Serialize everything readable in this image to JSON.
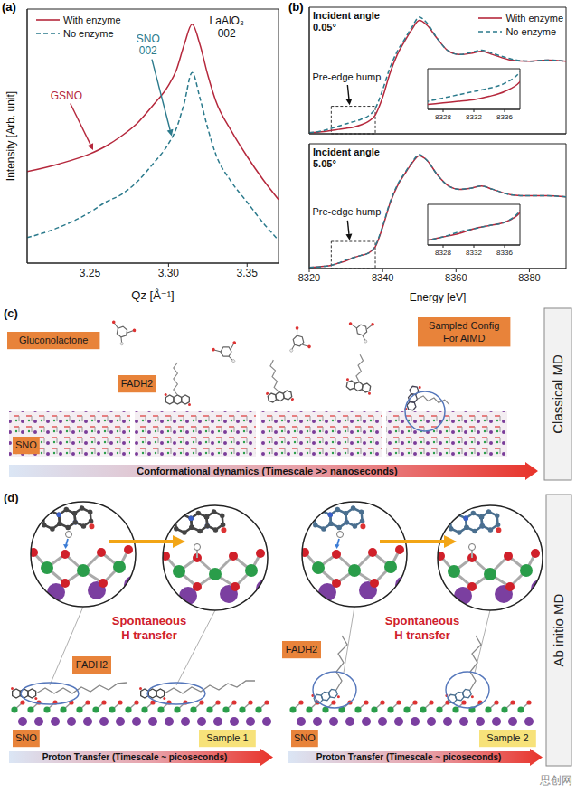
{
  "chart_data": [
    {
      "type": "line",
      "panel": "(a)",
      "xlabel": "Qz [Å⁻¹]",
      "ylabel": "Intensity [Arb. unit]",
      "x": [
        3.21,
        3.23,
        3.25,
        3.26,
        3.27,
        3.28,
        3.29,
        3.3,
        3.305,
        3.31,
        3.315,
        3.32,
        3.325,
        3.33,
        3.34,
        3.35,
        3.36,
        3.37
      ],
      "series": [
        {
          "name": "With enzyme",
          "color": "#b5283c",
          "line_style": "solid",
          "values": [
            3.6,
            3.9,
            4.3,
            4.6,
            5.0,
            5.5,
            6.2,
            7.0,
            7.6,
            8.6,
            9.4,
            8.6,
            7.4,
            6.4,
            5.2,
            4.2,
            3.3,
            2.5
          ]
        },
        {
          "name": "No enzyme",
          "color": "#2b7a8c",
          "line_style": "dashed",
          "values": [
            1.0,
            1.4,
            2.0,
            2.4,
            2.7,
            3.2,
            3.9,
            4.7,
            5.3,
            6.3,
            7.5,
            6.5,
            5.3,
            4.3,
            3.2,
            2.4,
            1.6,
            0.9
          ]
        }
      ],
      "xlim": [
        3.21,
        3.37
      ],
      "xticks": [
        3.25,
        {
          "value": 3.3,
          "label": "3.30"
        },
        3.35
      ],
      "ylim": [
        0,
        10
      ],
      "tick_labels": "x",
      "legend": "upper left",
      "annotations": [
        {
          "text": "LaAlO₃ 002",
          "color": "#111111",
          "x": 3.337,
          "y": 9.3
        },
        {
          "text": "SNO 002",
          "color": "#2b7a8c",
          "x": 3.287,
          "y": 8.6,
          "arrow_to": [
            [
              3.302,
              5.0
            ]
          ]
        },
        {
          "text": "GSNO",
          "color": "#b5283c",
          "x": 3.235,
          "y": 6.6,
          "arrow_to": [
            [
              3.252,
              4.45
            ]
          ]
        }
      ]
    },
    {
      "type": "line",
      "panel": "(b)",
      "title": "Incident angle 0.05°",
      "x": [
        8320,
        8324,
        8326,
        8328,
        8330,
        8332,
        8334,
        8336,
        8338,
        8340,
        8342,
        8344,
        8346,
        8348,
        8350,
        8352,
        8355,
        8358,
        8361,
        8364,
        8367,
        8370,
        8375,
        8380,
        8385,
        8390
      ],
      "series": [
        {
          "name": "With enzyme",
          "color": "#b5283c",
          "line_style": "solid",
          "values": [
            0.01,
            0.02,
            0.03,
            0.04,
            0.05,
            0.06,
            0.08,
            0.11,
            0.17,
            0.33,
            0.55,
            0.72,
            0.84,
            0.95,
            1.03,
            0.99,
            0.86,
            0.75,
            0.72,
            0.73,
            0.75,
            0.72,
            0.67,
            0.66,
            0.67,
            0.66
          ]
        },
        {
          "name": "No enzyme",
          "color": "#2b7a8c",
          "line_style": "dashed",
          "values": [
            0.01,
            0.03,
            0.05,
            0.07,
            0.09,
            0.11,
            0.13,
            0.16,
            0.23,
            0.4,
            0.6,
            0.75,
            0.86,
            0.97,
            1.06,
            1.01,
            0.86,
            0.75,
            0.72,
            0.74,
            0.76,
            0.73,
            0.68,
            0.66,
            0.67,
            0.66
          ]
        }
      ],
      "xlim": [
        8320,
        8390
      ],
      "xticks": [
        8320,
        8340,
        8360,
        8380
      ],
      "ylim": [
        0,
        1.15
      ],
      "tick_labels": false,
      "legend": "upper right",
      "annotations": [
        {
          "text": "Pre-edge hump",
          "color": "#111111",
          "x": 8330.2,
          "y": 0.52,
          "arrow_to": [
            [
              8331,
              0.26
            ]
          ]
        }
      ],
      "inset": {
        "xlim": [
          8326,
          8338
        ],
        "xticks": [
          8328,
          8332,
          8336
        ],
        "ylim": [
          0,
          0.25
        ]
      }
    },
    {
      "type": "line",
      "title": "Incident angle 5.05°",
      "xlabel": "Energy [eV]",
      "x": [
        8320,
        8324,
        8326,
        8328,
        8330,
        8332,
        8334,
        8336,
        8338,
        8340,
        8342,
        8344,
        8346,
        8348,
        8350,
        8352,
        8355,
        8358,
        8361,
        8364,
        8367,
        8370,
        8375,
        8380,
        8385,
        8390
      ],
      "series": [
        {
          "color": "#b5283c",
          "line_style": "solid",
          "values": [
            0.01,
            0.02,
            0.03,
            0.05,
            0.07,
            0.1,
            0.12,
            0.14,
            0.2,
            0.38,
            0.6,
            0.76,
            0.87,
            0.97,
            1.04,
            1.0,
            0.86,
            0.76,
            0.73,
            0.74,
            0.76,
            0.73,
            0.68,
            0.67,
            0.67,
            0.66
          ]
        },
        {
          "color": "#2b7a8c",
          "line_style": "dashed",
          "values": [
            0.01,
            0.02,
            0.03,
            0.05,
            0.08,
            0.1,
            0.12,
            0.14,
            0.21,
            0.39,
            0.61,
            0.77,
            0.88,
            0.98,
            1.05,
            1.0,
            0.86,
            0.76,
            0.73,
            0.74,
            0.76,
            0.73,
            0.68,
            0.67,
            0.67,
            0.66
          ]
        }
      ],
      "xlim": [
        8320,
        8390
      ],
      "xticks": [
        8320,
        8340,
        8360,
        8380
      ],
      "ylim": [
        0,
        1.15
      ],
      "tick_labels": "x",
      "annotations": [
        {
          "text": "Pre-edge hump",
          "color": "#111111",
          "x": 8330.2,
          "y": 0.52,
          "arrow_to": [
            [
              8331,
              0.26
            ]
          ]
        }
      ],
      "inset": {
        "xlim": [
          8326,
          8338
        ],
        "xticks": [
          8328,
          8332,
          8336
        ],
        "ylim": [
          0,
          0.25
        ]
      }
    }
  ],
  "diagram": {
    "panel_c": {
      "label": "(c)",
      "molecule_tags": [
        "Gluconolactone",
        "FADH2"
      ],
      "substrate_tag": "SNO",
      "highlight_tag": "Sampled Config For AIMD",
      "timeline": "Conformational dynamics (Timescale >> nanoseconds)",
      "method": "Classical MD"
    },
    "panel_d": {
      "label": "(d)",
      "events": [
        "Spontaneous H transfer",
        "Spontaneous H transfer"
      ],
      "samples": [
        {
          "name": "Sample 1",
          "molecule_tag": "FADH2",
          "substrate_tag": "SNO",
          "timeline": "Proton Transfer (Timescale ~ picoseconds)"
        },
        {
          "name": "Sample 2",
          "molecule_tag": "FADH2",
          "substrate_tag": "SNO",
          "timeline": "Proton Transfer (Timescale ~ picoseconds)"
        }
      ],
      "method": "Ab initio MD"
    }
  },
  "watermark": "思创网"
}
